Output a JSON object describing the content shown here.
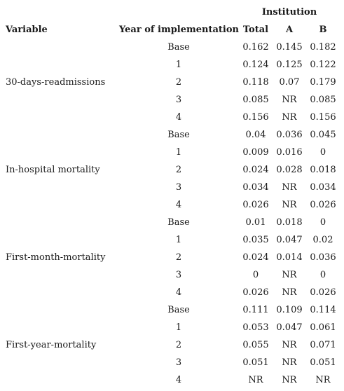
{
  "header": {
    "institution": "Institution",
    "variable": "Variable",
    "year": "Year of implementation",
    "total": "Total",
    "a": "A",
    "b": "B"
  },
  "groups": [
    {
      "variable": "30-days-readmissions",
      "rows": [
        {
          "year": "Base",
          "total": "0.162",
          "a": "0.145",
          "b": "0.182"
        },
        {
          "year": "1",
          "total": "0.124",
          "a": "0.125",
          "b": "0.122"
        },
        {
          "year": "2",
          "total": "0.118",
          "a": "0.07",
          "b": "0.179"
        },
        {
          "year": "3",
          "total": "0.085",
          "a": "NR",
          "b": "0.085"
        },
        {
          "year": "4",
          "total": "0.156",
          "a": "NR",
          "b": "0.156"
        }
      ]
    },
    {
      "variable": "In-hospital mortality",
      "rows": [
        {
          "year": "Base",
          "total": "0.04",
          "a": "0.036",
          "b": "0.045"
        },
        {
          "year": "1",
          "total": "0.009",
          "a": "0.016",
          "b": "0"
        },
        {
          "year": "2",
          "total": "0.024",
          "a": "0.028",
          "b": "0.018"
        },
        {
          "year": "3",
          "total": "0.034",
          "a": "NR",
          "b": "0.034"
        },
        {
          "year": "4",
          "total": "0.026",
          "a": "NR",
          "b": "0.026"
        }
      ]
    },
    {
      "variable": "First-month-mortality",
      "rows": [
        {
          "year": "Base",
          "total": "0.01",
          "a": "0.018",
          "b": "0"
        },
        {
          "year": "1",
          "total": "0.035",
          "a": "0.047",
          "b": "0.02"
        },
        {
          "year": "2",
          "total": "0.024",
          "a": "0.014",
          "b": "0.036"
        },
        {
          "year": "3",
          "total": "0",
          "a": "NR",
          "b": "0"
        },
        {
          "year": "4",
          "total": "0.026",
          "a": "NR",
          "b": "0.026"
        }
      ]
    },
    {
      "variable": "First-year-mortality",
      "rows": [
        {
          "year": "Base",
          "total": "0.111",
          "a": "0.109",
          "b": "0.114"
        },
        {
          "year": "1",
          "total": "0.053",
          "a": "0.047",
          "b": "0.061"
        },
        {
          "year": "2",
          "total": "0.055",
          "a": "NR",
          "b": "0.071"
        },
        {
          "year": "3",
          "total": "0.051",
          "a": "NR",
          "b": "0.051"
        },
        {
          "year": "4",
          "total": "NR",
          "a": "NR",
          "b": "NR"
        }
      ]
    }
  ]
}
